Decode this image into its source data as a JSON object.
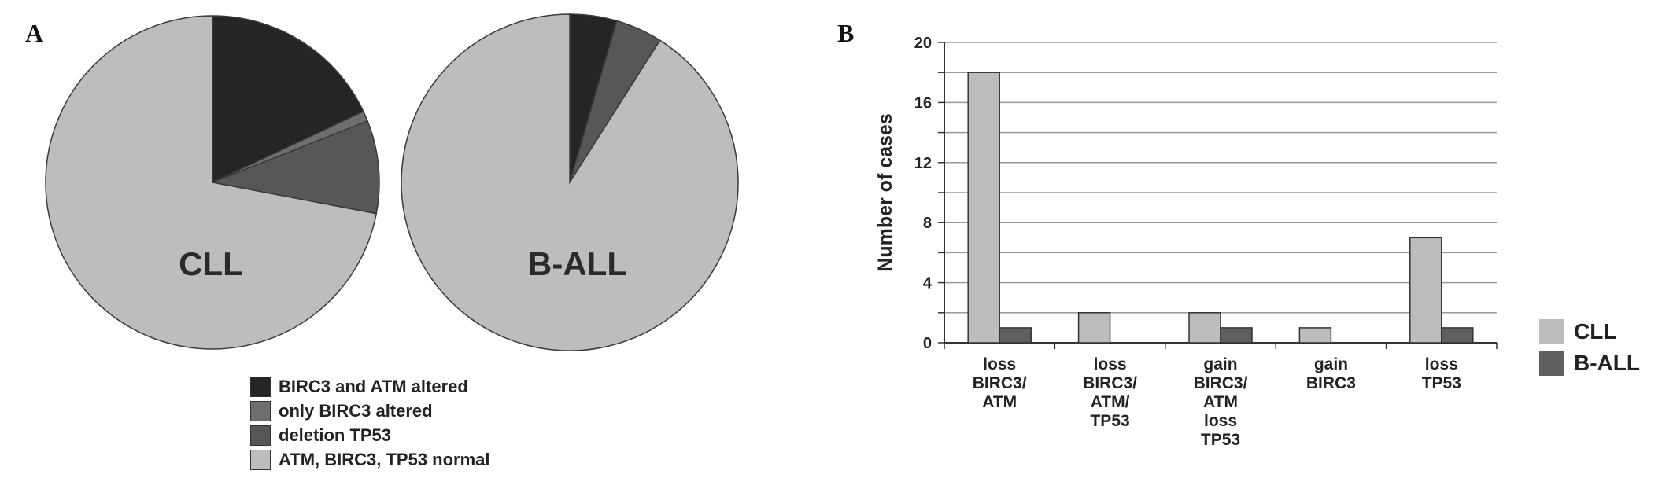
{
  "panel_a_letter": "A",
  "panel_b_letter": "B",
  "chart_data": [
    {
      "type": "pie",
      "label": "CLL",
      "slice_order": "clockwise-from-top",
      "slices": [
        {
          "name": "BIRC3 and ATM altered",
          "value": 18,
          "color": "#252525"
        },
        {
          "name": "only BIRC3 altered",
          "value": 1,
          "color": "#6e6e6e"
        },
        {
          "name": "deletion TP53",
          "value": 9,
          "color": "#575757"
        },
        {
          "name": "ATM, BIRC3, TP53 normal",
          "value": 72,
          "color": "#bdbdbd"
        }
      ],
      "legend": [
        {
          "label": "BIRC3 and ATM altered",
          "color": "#252525"
        },
        {
          "label": "only BIRC3 altered",
          "color": "#6e6e6e"
        },
        {
          "label": "deletion TP53",
          "color": "#575757"
        },
        {
          "label": "ATM, BIRC3, TP53 normal",
          "color": "#bdbdbd"
        }
      ]
    },
    {
      "type": "pie",
      "label": "B-ALL",
      "slice_order": "clockwise-from-top",
      "slices": [
        {
          "name": "BIRC3 and ATM altered",
          "value": 4.5,
          "color": "#252525"
        },
        {
          "name": "deletion TP53",
          "value": 4.5,
          "color": "#575757"
        },
        {
          "name": "ATM, BIRC3, TP53 normal",
          "value": 91,
          "color": "#bdbdbd"
        }
      ]
    },
    {
      "type": "bar",
      "categories": [
        [
          "loss",
          "BIRC3/",
          "ATM"
        ],
        [
          "loss",
          "BIRC3/",
          "ATM/",
          "TP53"
        ],
        [
          "gain",
          "BIRC3/",
          "ATM",
          "loss",
          "TP53"
        ],
        [
          "gain",
          "BIRC3"
        ],
        [
          "loss",
          "TP53"
        ]
      ],
      "series": [
        {
          "name": "CLL",
          "values": [
            18,
            2,
            2,
            1,
            7
          ],
          "color": "#bdbdbd"
        },
        {
          "name": "B-ALL",
          "values": [
            1,
            0,
            1,
            0,
            1
          ],
          "color": "#5f5f5f"
        }
      ],
      "ylabel": "Number of cases",
      "ylim": [
        0,
        20
      ],
      "yticks": [
        0,
        4,
        8,
        12,
        16,
        20
      ],
      "minor_grid_step": 2,
      "grid": true,
      "legend_position": "right"
    }
  ]
}
